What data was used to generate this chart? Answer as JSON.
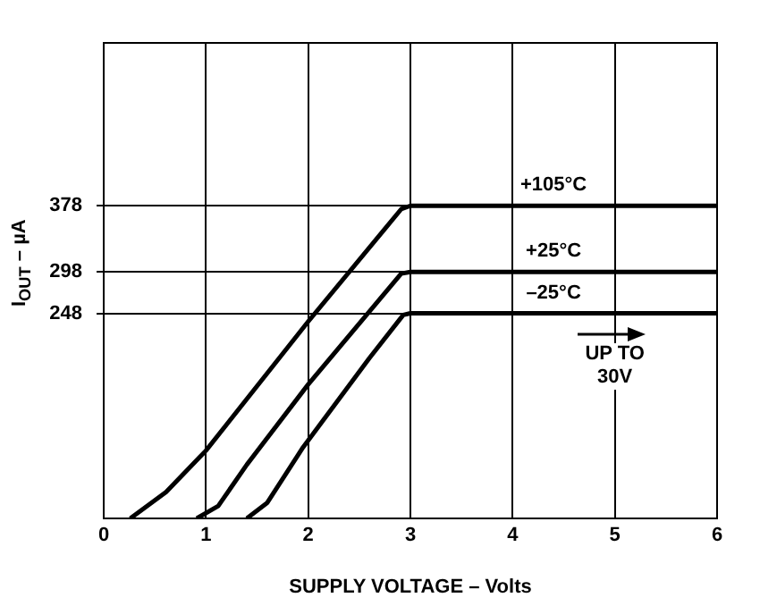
{
  "chart_data": {
    "type": "line",
    "xlabel": "SUPPLY VOLTAGE – Volts",
    "ylabel": "I$_{OUT}$ – µA",
    "xlim": [
      0,
      6
    ],
    "xticks": [
      0,
      1,
      2,
      3,
      4,
      5,
      6
    ],
    "ylim": [
      0,
      575
    ],
    "yticks": [
      248,
      298,
      378
    ],
    "grid": true,
    "legend": false,
    "marker": "none",
    "line_style": "solid",
    "series": [
      {
        "name": "+105°C",
        "color": "#000000",
        "x": [
          0.26,
          0.61,
          1.0,
          2.0,
          2.91,
          3.0,
          6.0
        ],
        "values": [
          0,
          32,
          82,
          238,
          374,
          378,
          378
        ]
      },
      {
        "name": "+25°C",
        "color": "#000000",
        "x": [
          0.91,
          1.12,
          1.4,
          2.0,
          2.91,
          3.0,
          6.0
        ],
        "values": [
          0,
          15,
          65,
          162,
          296,
          298,
          298
        ]
      },
      {
        "name": "–25°C",
        "color": "#000000",
        "x": [
          1.4,
          1.6,
          1.95,
          2.6,
          2.93,
          3.0,
          6.0
        ],
        "values": [
          0,
          19,
          86,
          194,
          246,
          248,
          248
        ]
      }
    ],
    "annotations": [
      "UP TO\n30V"
    ]
  }
}
